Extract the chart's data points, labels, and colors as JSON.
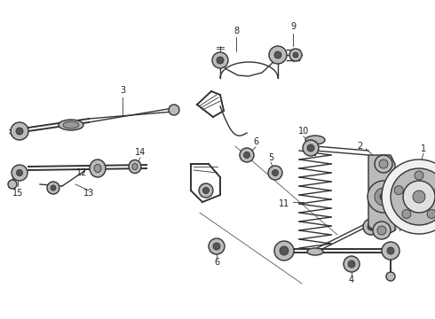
{
  "background_color": "#ffffff",
  "line_color": "#333333",
  "label_color": "#222222",
  "figure_width": 4.9,
  "figure_height": 3.6,
  "dpi": 100,
  "label_fontsize": 7.0,
  "lw_main": 1.0,
  "lw_thick": 1.4,
  "lw_thin": 0.6,
  "gray_fill": "#888888",
  "light_gray": "#bbbbbb",
  "mid_gray": "#999999",
  "dark_gray": "#555555"
}
